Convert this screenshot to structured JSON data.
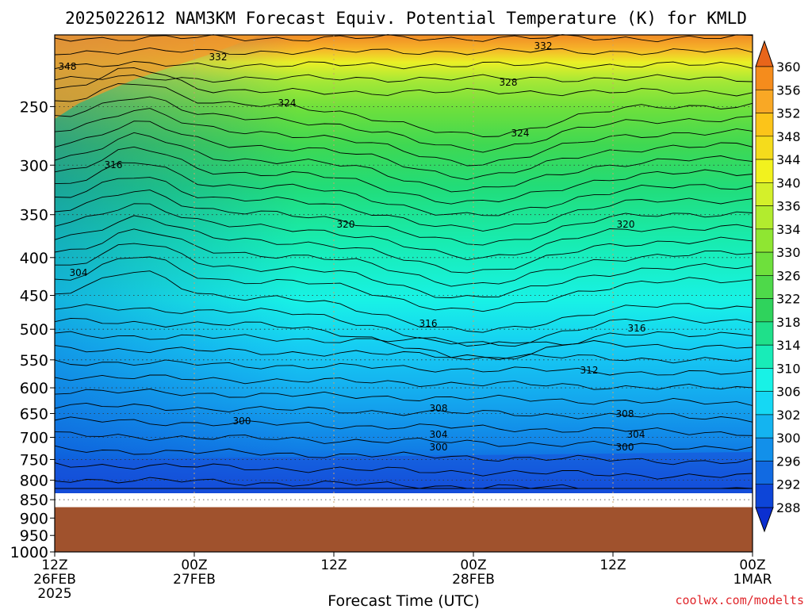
{
  "title": "2025022612 NAM3KM Forecast Equiv. Potential Temperature (K) for KMLD",
  "credit": "coolwx.com/modelts",
  "chart_data": {
    "type": "heatmap",
    "title": "2025022612 NAM3KM Forecast Equiv. Potential Temperature (K) for KMLD",
    "xlabel": "Forecast Time (UTC)",
    "ylabel": "",
    "y_scale": "log",
    "y_axis_reversed": true,
    "ylim": [
      1000,
      200
    ],
    "xlim": [
      "2025-02-26 12Z",
      "2025-03-01 00Z"
    ],
    "x_ticks": [
      {
        "lines": [
          "12Z",
          "26FEB",
          "2025"
        ]
      },
      {
        "lines": [
          "00Z",
          "27FEB"
        ]
      },
      {
        "lines": [
          "12Z"
        ]
      },
      {
        "lines": [
          "00Z",
          "28FEB"
        ]
      },
      {
        "lines": [
          "12Z"
        ]
      },
      {
        "lines": [
          "00Z",
          "1MAR"
        ]
      }
    ],
    "y_ticks": [
      250,
      300,
      350,
      400,
      450,
      500,
      550,
      600,
      650,
      700,
      750,
      800,
      850,
      900,
      950,
      1000
    ],
    "grid": true,
    "ground_below_hPa": 870,
    "colorbar": {
      "labels": [
        360,
        356,
        352,
        348,
        344,
        340,
        336,
        334,
        330,
        326,
        322,
        318,
        314,
        310,
        306,
        302,
        300,
        296,
        292,
        288
      ],
      "colors": [
        "#e8651a",
        "#f58c1c",
        "#f9a825",
        "#fcc419",
        "#f5dc1c",
        "#f2f21e",
        "#d4f02a",
        "#b2ec2e",
        "#8fe632",
        "#6ee03c",
        "#4ed94a",
        "#2fd35c",
        "#1fe08a",
        "#18ecb8",
        "#18f2e6",
        "#15d8f4",
        "#14b4f0",
        "#1290ea",
        "#116ae2",
        "#0d45d8"
      ],
      "extends": "both"
    },
    "contour_labels": [
      "348",
      "332",
      "332",
      "328",
      "324",
      "324",
      "316",
      "320",
      "320",
      "304",
      "316",
      "316",
      "312",
      "308",
      "308",
      "300",
      "304",
      "304",
      "300",
      "300"
    ]
  }
}
